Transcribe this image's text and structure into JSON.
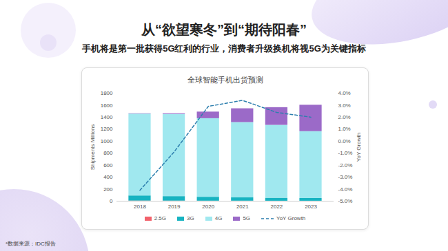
{
  "header": {
    "title": "从“欲望寒冬”到“期待阳春”",
    "subtitle": "手机将是第一批获得5G红利的行业，消费者升级换机将视5G为关键指标"
  },
  "source": "*数据来源：IDC报告",
  "chart_data": {
    "type": "bar",
    "title": "全球智能手机出货预测",
    "stacked": true,
    "grid": false,
    "legend": "bottom",
    "y_label": "Shipments Millions",
    "y2_label": "YoY Growth",
    "categories": [
      "2018",
      "2019",
      "2020",
      "2021",
      "2022",
      "2023"
    ],
    "ylim": [
      0,
      1800
    ],
    "yticks": [
      0,
      200,
      400,
      600,
      800,
      1000,
      1200,
      1400,
      1600,
      1800
    ],
    "y2lim": [
      -5,
      4
    ],
    "y2ticks": [
      {
        "value": -5,
        "label": "-5.0%"
      },
      {
        "value": -4,
        "label": "-4.0%"
      },
      {
        "value": -3,
        "label": "-3.0%"
      },
      {
        "value": -2,
        "label": "-2.0%"
      },
      {
        "value": -1,
        "label": "-1.0%"
      },
      {
        "value": 0,
        "label": "0.0%"
      },
      {
        "value": 1,
        "label": "1.0%"
      },
      {
        "value": 2,
        "label": "2.0%"
      },
      {
        "value": 3,
        "label": "3.0%"
      },
      {
        "value": 4,
        "label": "4.0%"
      }
    ],
    "series": [
      {
        "name": "2.5G",
        "type": "bar",
        "color": "#f2616b",
        "values": [
          4,
          3,
          2,
          2,
          1,
          1
        ]
      },
      {
        "name": "3G",
        "type": "bar",
        "color": "#17b3c1",
        "values": [
          85,
          75,
          65,
          55,
          50,
          45
        ]
      },
      {
        "name": "4G",
        "type": "bar",
        "color": "#a0e8ef",
        "values": [
          1365,
          1370,
          1310,
          1255,
          1215,
          1115
        ]
      },
      {
        "name": "5G",
        "type": "bar",
        "color": "#9b6ac8",
        "values": [
          6,
          12,
          110,
          230,
          295,
          440
        ]
      },
      {
        "name": "YoY Growth",
        "type": "line",
        "axis": "y2",
        "color": "#2d7fae",
        "line_style": "dashed",
        "values": [
          -4.1,
          -0.9,
          2.9,
          3.4,
          2.4,
          2.0
        ]
      }
    ]
  }
}
